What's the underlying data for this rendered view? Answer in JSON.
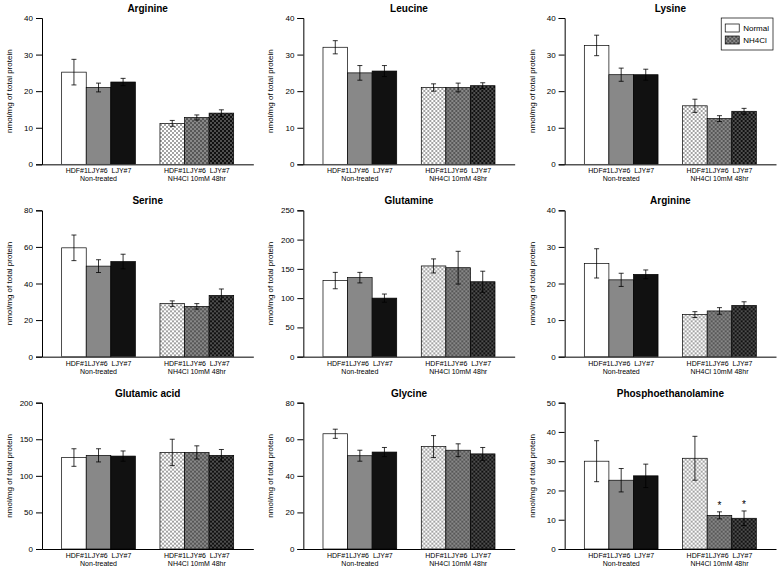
{
  "chart_data": [
    {
      "type": "bar",
      "title": "Arginine",
      "ylabel": "nmol/mg of total protein",
      "categories": [
        "HDF#1LJY#6  LJY#7\nNon-treated",
        "HDF#1LJY#6  LJY#7\nNH4Cl 10mM 48hr"
      ],
      "ylim": [
        0,
        40
      ],
      "yticks": [
        0,
        10,
        20,
        30,
        40
      ],
      "series": [
        {
          "color": "white",
          "values": [
            25.2,
            11.2
          ],
          "errors": [
            3.5,
            0.8
          ]
        },
        {
          "color": "#888888",
          "values": [
            21.0,
            12.8
          ],
          "errors": [
            1.2,
            0.7
          ]
        },
        {
          "color": "#111111",
          "values": [
            22.5,
            14.0
          ],
          "errors": [
            1.0,
            0.9
          ]
        }
      ]
    },
    {
      "type": "bar",
      "title": "Leucine",
      "ylabel": "nmol/mg of total protein",
      "categories": [
        "HDF#1LJY#6  LJY#7\nNon-treated",
        "HDF#1LJY#6  LJY#7\nNH4Cl 10mM 48hr"
      ],
      "ylim": [
        0,
        40
      ],
      "yticks": [
        0,
        10,
        20,
        30,
        40
      ],
      "series": [
        {
          "color": "white",
          "values": [
            32.0,
            21.0
          ],
          "errors": [
            1.8,
            1.0
          ]
        },
        {
          "color": "#888888",
          "values": [
            25.0,
            21.0
          ],
          "errors": [
            2.0,
            1.2
          ]
        },
        {
          "color": "#111111",
          "values": [
            25.5,
            21.5
          ],
          "errors": [
            1.5,
            0.8
          ]
        }
      ]
    },
    {
      "type": "bar",
      "title": "Lysine",
      "ylabel": "nmol/mg of total protein",
      "categories": [
        "HDF#1LJY#6  LJY#7\nNon-treated",
        "HDF#1LJY#6  LJY#7\nNH4Cl 10mM 48hr"
      ],
      "ylim": [
        0,
        40
      ],
      "yticks": [
        0,
        10,
        20,
        30,
        40
      ],
      "legend": "upper right",
      "legend_labels": [
        "Normal",
        "NH4Cl"
      ],
      "legend_colors": [
        "white",
        "#888888"
      ],
      "series": [
        {
          "color": "white",
          "values": [
            32.5,
            16.0
          ],
          "errors": [
            2.8,
            1.8
          ]
        },
        {
          "color": "#888888",
          "values": [
            24.5,
            12.5
          ],
          "errors": [
            1.8,
            0.8
          ]
        },
        {
          "color": "#111111",
          "values": [
            24.5,
            14.5
          ],
          "errors": [
            1.5,
            0.8
          ]
        }
      ]
    },
    {
      "type": "bar",
      "title": "Serine",
      "ylabel": "nmol/mg of total protein",
      "categories": [
        "HDF#1LJY#6  LJY#7\nNon-treated",
        "HDF#1LJY#6  LJY#7\nNH4Cl 10mM 48hr"
      ],
      "ylim": [
        0,
        80
      ],
      "yticks": [
        0,
        20,
        40,
        60,
        80
      ],
      "series": [
        {
          "color": "white",
          "values": [
            59.5,
            29.0
          ],
          "errors": [
            7.0,
            1.5
          ]
        },
        {
          "color": "#888888",
          "values": [
            49.5,
            27.5
          ],
          "errors": [
            3.5,
            1.5
          ]
        },
        {
          "color": "#111111",
          "values": [
            52.0,
            33.5
          ],
          "errors": [
            4.0,
            3.5
          ]
        }
      ]
    },
    {
      "type": "bar",
      "title": "Glutamine",
      "ylabel": "nmol/mg of total protein",
      "categories": [
        "HDF#1LJY#6  LJY#7\nNon-treated",
        "HDF#1LJY#6  LJY#7\nNH4Cl 10mM 48hr"
      ],
      "ylim": [
        0,
        250
      ],
      "yticks": [
        0,
        50,
        100,
        150,
        200,
        250
      ],
      "series": [
        {
          "color": "white",
          "values": [
            130.0,
            155.0
          ],
          "errors": [
            14.0,
            12.0
          ]
        },
        {
          "color": "#888888",
          "values": [
            135.0,
            152.0
          ],
          "errors": [
            9.0,
            28.0
          ]
        },
        {
          "color": "#111111",
          "values": [
            100.0,
            128.0
          ],
          "errors": [
            7.0,
            18.0
          ]
        }
      ]
    },
    {
      "type": "bar",
      "title": "Arginine",
      "ylabel": "nmol/mg of total protein",
      "categories": [
        "HDF#1LJY#6  LJY#7\nNon-treated",
        "HDF#1LJY#6  LJY#7\nNH4Cl 10mM 48hr"
      ],
      "ylim": [
        0,
        40
      ],
      "yticks": [
        0,
        10,
        20,
        30,
        40
      ],
      "series": [
        {
          "color": "white",
          "values": [
            25.5,
            11.5
          ],
          "errors": [
            4.0,
            0.8
          ]
        },
        {
          "color": "#888888",
          "values": [
            21.0,
            12.5
          ],
          "errors": [
            1.8,
            0.9
          ]
        },
        {
          "color": "#111111",
          "values": [
            22.5,
            14.0
          ],
          "errors": [
            1.2,
            1.0
          ]
        }
      ]
    },
    {
      "type": "bar",
      "title": "Glutamic acid",
      "ylabel": "nmol/mg of total protein",
      "categories": [
        "HDF#1LJY#6  LJY#7\nNon-treated",
        "HDF#1LJY#6  LJY#7\nNH4Cl 10mM 48hr"
      ],
      "ylim": [
        0,
        200
      ],
      "yticks": [
        0,
        50,
        100,
        150,
        200
      ],
      "series": [
        {
          "color": "white",
          "values": [
            125.0,
            132.0
          ],
          "errors": [
            12.0,
            18.0
          ]
        },
        {
          "color": "#888888",
          "values": [
            128.0,
            132.0
          ],
          "errors": [
            9.0,
            9.0
          ]
        },
        {
          "color": "#111111",
          "values": [
            127.0,
            128.0
          ],
          "errors": [
            7.0,
            8.0
          ]
        }
      ]
    },
    {
      "type": "bar",
      "title": "Glycine",
      "ylabel": "nmol/mg of total protein",
      "categories": [
        "HDF#1LJY#6  LJY#7\nNon-treated",
        "HDF#1LJY#6  LJY#7\nNH4Cl 10mM 48hr"
      ],
      "ylim": [
        0,
        80
      ],
      "yticks": [
        0,
        20,
        40,
        60,
        80
      ],
      "series": [
        {
          "color": "white",
          "values": [
            63.0,
            56.0
          ],
          "errors": [
            2.5,
            6.0
          ]
        },
        {
          "color": "#888888",
          "values": [
            51.0,
            54.0
          ],
          "errors": [
            3.0,
            3.5
          ]
        },
        {
          "color": "#111111",
          "values": [
            53.0,
            52.0
          ],
          "errors": [
            2.5,
            3.5
          ]
        }
      ]
    },
    {
      "type": "bar",
      "title": "Phosphoethanolamine",
      "ylabel": "nmol/mg of total protein",
      "categories": [
        "HDF#1LJY#6  LJY#7\nNon-treated",
        "HDF#1LJY#6  LJY#7\nNH4Cl 10mM 48hr"
      ],
      "ylim": [
        0,
        50
      ],
      "yticks": [
        0,
        10,
        20,
        30,
        40,
        50
      ],
      "series": [
        {
          "color": "white",
          "values": [
            30.0,
            31.0
          ],
          "errors": [
            7.0,
            7.5
          ]
        },
        {
          "color": "#888888",
          "values": [
            23.5,
            11.5
          ],
          "errors": [
            4.0,
            1.2
          ],
          "annotations": [
            null,
            "*"
          ]
        },
        {
          "color": "#111111",
          "values": [
            25.0,
            10.5
          ],
          "errors": [
            4.0,
            2.5
          ],
          "annotations": [
            null,
            "*"
          ]
        }
      ]
    }
  ]
}
